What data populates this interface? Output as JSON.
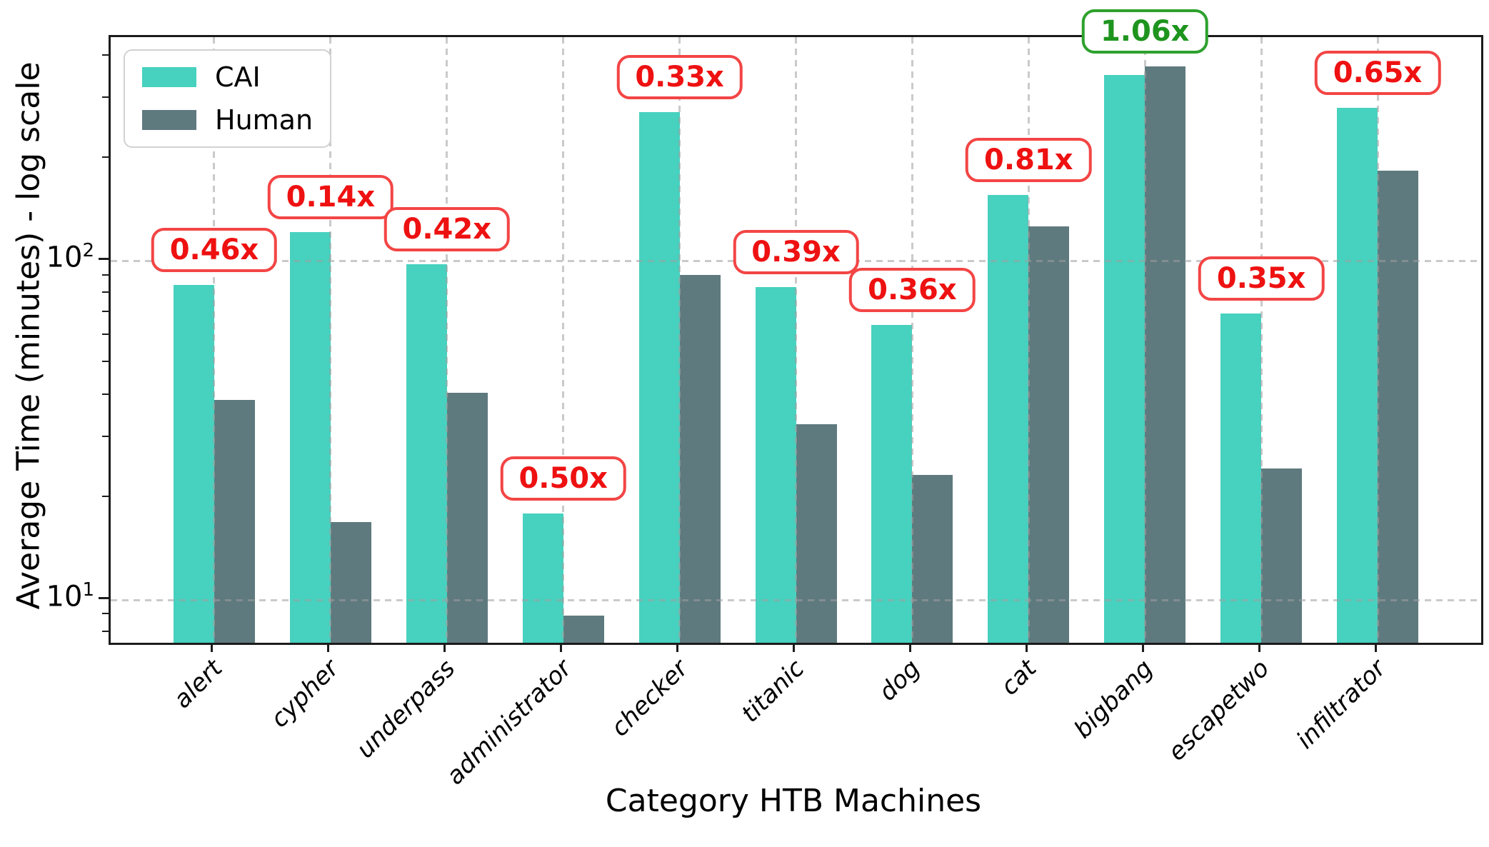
{
  "chart_data": {
    "type": "bar",
    "title": "",
    "xlabel": "Category HTB Machines",
    "ylabel": "Average Time (minutes) - log scale",
    "y_scale": "log",
    "ylim": [
      7.5,
      458
    ],
    "grid": "dashed",
    "legend_position": "upper left",
    "categories": [
      "alert",
      "cypher",
      "underpass",
      "administrator",
      "checker",
      "titanic",
      "dog",
      "cat",
      "bigbang",
      "escapetwo",
      "infiltrator"
    ],
    "series": [
      {
        "name": "CAI",
        "color": "#47d1bf",
        "values": [
          85,
          122,
          98,
          18,
          275,
          84,
          65,
          157,
          354,
          70,
          284
        ]
      },
      {
        "name": "Human",
        "color": "#5f7a7e",
        "values": [
          39,
          17,
          41,
          9,
          91,
          33,
          23.4,
          127,
          375,
          24.5,
          185
        ]
      }
    ],
    "annotations": [
      {
        "category": "alert",
        "text": "0.46x",
        "color": "red"
      },
      {
        "category": "cypher",
        "text": "0.14x",
        "color": "red"
      },
      {
        "category": "underpass",
        "text": "0.42x",
        "color": "red"
      },
      {
        "category": "administrator",
        "text": "0.50x",
        "color": "red"
      },
      {
        "category": "checker",
        "text": "0.33x",
        "color": "red"
      },
      {
        "category": "titanic",
        "text": "0.39x",
        "color": "red"
      },
      {
        "category": "dog",
        "text": "0.36x",
        "color": "red"
      },
      {
        "category": "cat",
        "text": "0.81x",
        "color": "red"
      },
      {
        "category": "bigbang",
        "text": "1.06x",
        "color": "green"
      },
      {
        "category": "escapetwo",
        "text": "0.35x",
        "color": "red"
      },
      {
        "category": "infiltrator",
        "text": "0.65x",
        "color": "red"
      }
    ],
    "annotation_palette": {
      "red": {
        "text": "#ee1111",
        "border": "#f34545"
      },
      "green": {
        "text": "#1e941e",
        "border": "#2da12d"
      }
    },
    "y_ticks": [
      {
        "value": 10,
        "base": "10",
        "exp": "1"
      },
      {
        "value": 100,
        "base": "10",
        "exp": "2"
      }
    ],
    "y_minor_ticks": [
      8,
      9,
      20,
      30,
      40,
      50,
      60,
      70,
      80,
      90,
      200,
      300,
      400
    ]
  },
  "legend": {
    "items": [
      {
        "label": "CAI"
      },
      {
        "label": "Human"
      }
    ]
  }
}
